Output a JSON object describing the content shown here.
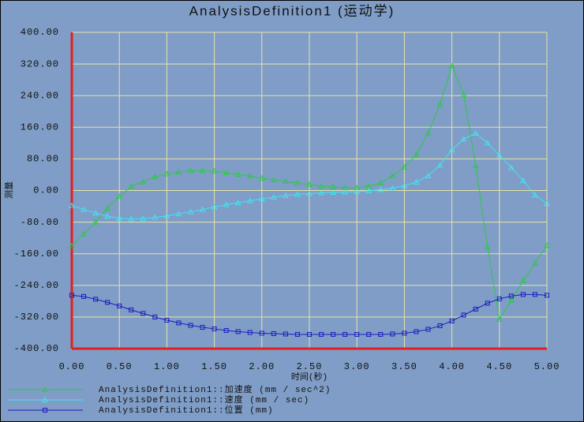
{
  "chart_data": {
    "type": "line",
    "title": "AnalysisDefinition1 (运动学)",
    "x_label": "时间(秒)",
    "y_label": "测量",
    "x": [
      0,
      0.125,
      0.25,
      0.375,
      0.5,
      0.625,
      0.75,
      0.875,
      1,
      1.125,
      1.25,
      1.375,
      1.5,
      1.625,
      1.75,
      1.875,
      2,
      2.125,
      2.25,
      2.375,
      2.5,
      2.625,
      2.75,
      2.875,
      3,
      3.125,
      3.25,
      3.375,
      3.5,
      3.625,
      3.75,
      3.875,
      4,
      4.125,
      4.25,
      4.375,
      4.5,
      4.625,
      4.75,
      4.875,
      5
    ],
    "series": [
      {
        "name": "AnalysisDefinition1::加速度 (mm / sec^2)",
        "color": "#2ec84a",
        "marker": "triangle",
        "values": [
          -140,
          -110,
          -80,
          -45,
          -15,
          10,
          22,
          35,
          42,
          47,
          50,
          50,
          49,
          45,
          41,
          37,
          31,
          27,
          23,
          19,
          15,
          11,
          9,
          7,
          7,
          11,
          19,
          37,
          59,
          90,
          145,
          218,
          315,
          243,
          63,
          -143,
          -326,
          -278,
          -228,
          -184,
          -139
        ]
      },
      {
        "name": "AnalysisDefinition1::速度 (mm / sec)",
        "color": "#40e4f4",
        "marker": "triangle",
        "values": [
          -38,
          -48,
          -57,
          -65,
          -70,
          -72,
          -71,
          -68,
          -64,
          -59,
          -54,
          -48,
          -42,
          -36,
          -31,
          -26,
          -21,
          -17,
          -13,
          -10,
          -8,
          -6,
          -5,
          -4,
          -3,
          -1,
          2,
          6,
          12,
          21,
          37,
          64,
          103,
          130,
          145,
          120,
          89,
          58,
          25,
          -12,
          -33
        ]
      },
      {
        "name": "AnalysisDefinition1::位置 (mm)",
        "color": "#1c1cc0",
        "marker": "square",
        "values": [
          -265,
          -268,
          -275,
          -283,
          -292,
          -302,
          -311,
          -320,
          -328,
          -335,
          -341,
          -346,
          -350,
          -354,
          -357,
          -359,
          -361,
          -362,
          -363,
          -364,
          -364,
          -364,
          -364,
          -364,
          -364,
          -364,
          -364,
          -363,
          -361,
          -357,
          -351,
          -342,
          -330,
          -315,
          -300,
          -285,
          -274,
          -267,
          -263,
          -263,
          -265
        ]
      }
    ],
    "xlim": [
      0,
      5
    ],
    "ylim": [
      -400,
      400
    ],
    "xticks": [
      {
        "value": 0,
        "label": "0.00"
      },
      {
        "value": 0.5,
        "label": "0.50"
      },
      {
        "value": 1,
        "label": "1.00"
      },
      {
        "value": 1.5,
        "label": "1.50"
      },
      {
        "value": 2,
        "label": "2.00"
      },
      {
        "value": 2.5,
        "label": "2.50"
      },
      {
        "value": 3,
        "label": "3.00"
      },
      {
        "value": 3.5,
        "label": "3.50"
      },
      {
        "value": 4,
        "label": "4.00"
      },
      {
        "value": 4.5,
        "label": "4.50"
      },
      {
        "value": 5,
        "label": "5.00"
      }
    ],
    "yticks": [
      {
        "value": -400,
        "label": "-400.00"
      },
      {
        "value": -320,
        "label": "-320.00"
      },
      {
        "value": -240,
        "label": "-240.00"
      },
      {
        "value": -160,
        "label": "-160.00"
      },
      {
        "value": -80,
        "label": "-80.00"
      },
      {
        "value": 0,
        "label": "0.00"
      },
      {
        "value": 80,
        "label": "80.00"
      },
      {
        "value": 160,
        "label": "160.00"
      },
      {
        "value": 240,
        "label": "240.00"
      },
      {
        "value": 320,
        "label": "320.00"
      },
      {
        "value": 400,
        "label": "400.00"
      }
    ],
    "grid": true,
    "grid_color": "#e6e4a8",
    "axis_color": "#e02020",
    "legend": "bottom-left"
  }
}
